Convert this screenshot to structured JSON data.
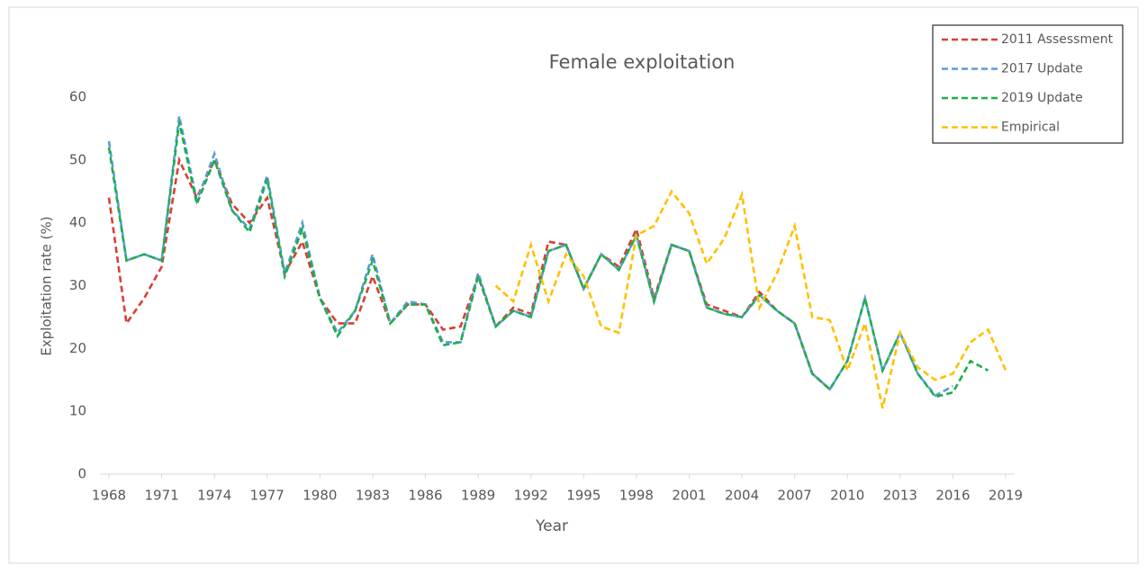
{
  "chart_data": {
    "type": "line",
    "title": "Female exploitation",
    "x_label": "Year",
    "y_label": "Exploitation rate (%)",
    "x": [
      1968,
      1969,
      1970,
      1971,
      1972,
      1973,
      1974,
      1975,
      1976,
      1977,
      1978,
      1979,
      1980,
      1981,
      1982,
      1983,
      1984,
      1985,
      1986,
      1987,
      1988,
      1989,
      1990,
      1991,
      1992,
      1993,
      1994,
      1995,
      1996,
      1997,
      1998,
      1999,
      2000,
      2001,
      2002,
      2003,
      2004,
      2005,
      2006,
      2007,
      2008,
      2009,
      2010,
      2011,
      2012,
      2013,
      2014,
      2015,
      2016,
      2017,
      2018,
      2019
    ],
    "series": [
      {
        "name": "2011 Assessment",
        "color": "#d93f35",
        "values": [
          44,
          24,
          28,
          33,
          50,
          44,
          50,
          43,
          40,
          44,
          32,
          37,
          28,
          24,
          24,
          31.5,
          24,
          27,
          27,
          23,
          23.5,
          31.5,
          23.5,
          26.5,
          25.5,
          37,
          36.5,
          29.5,
          35,
          33,
          39,
          28,
          36.5,
          35.5,
          27,
          26,
          25,
          29,
          26,
          24,
          16,
          13.5,
          null,
          null,
          null,
          null,
          null,
          null,
          null,
          null,
          null,
          null
        ]
      },
      {
        "name": "2017 Update",
        "color": "#5b9bd5",
        "values": [
          53,
          34,
          35,
          34,
          57,
          43.5,
          51,
          42,
          39,
          47.5,
          32,
          40,
          28,
          22.5,
          26,
          35,
          24,
          27.5,
          27,
          21,
          21,
          32,
          23.5,
          26,
          25,
          35.5,
          36.5,
          29.5,
          35,
          32.5,
          38,
          27.5,
          36.5,
          35.5,
          26.5,
          25.5,
          25,
          28.5,
          26,
          24,
          16,
          13.5,
          18,
          28,
          16.5,
          22.5,
          16,
          12.5,
          14,
          null,
          null,
          null
        ]
      },
      {
        "name": "2019 Update",
        "color": "#1fae4f",
        "values": [
          52,
          34,
          35,
          34,
          56,
          43,
          50,
          42,
          38.5,
          47,
          31.5,
          39,
          28,
          22,
          26,
          34,
          24,
          27,
          27,
          20.5,
          21,
          31.5,
          23.5,
          26,
          25,
          35.5,
          36.5,
          29.5,
          35,
          32.5,
          38,
          27.5,
          36.5,
          35.5,
          26.5,
          25.5,
          25,
          28.5,
          26,
          24,
          16,
          13.5,
          18,
          28,
          16.5,
          22.5,
          16,
          12.3,
          13,
          18,
          16.5,
          null
        ]
      },
      {
        "name": "Empirical",
        "color": "#ffc000",
        "values": [
          null,
          null,
          null,
          null,
          null,
          null,
          null,
          null,
          null,
          null,
          null,
          null,
          null,
          null,
          null,
          null,
          null,
          null,
          null,
          null,
          null,
          null,
          30,
          27.5,
          36.5,
          27.5,
          35,
          31.5,
          23.5,
          22.5,
          38,
          39.5,
          45,
          41.5,
          33.5,
          37.5,
          44.5,
          26.5,
          32,
          39.5,
          25,
          24.5,
          16.5,
          24,
          10.5,
          22.5,
          17,
          15,
          16,
          21,
          23,
          16.5
        ]
      }
    ],
    "xlim": [
      1968,
      2019
    ],
    "xticks": [
      1968,
      1971,
      1974,
      1977,
      1980,
      1983,
      1986,
      1989,
      1992,
      1995,
      1998,
      2001,
      2004,
      2007,
      2010,
      2013,
      2016,
      2019
    ],
    "ylim": [
      0,
      60
    ],
    "yticks": [
      0,
      10,
      20,
      30,
      40,
      50,
      60
    ],
    "legend": "top-right",
    "line_style": "dashed"
  }
}
